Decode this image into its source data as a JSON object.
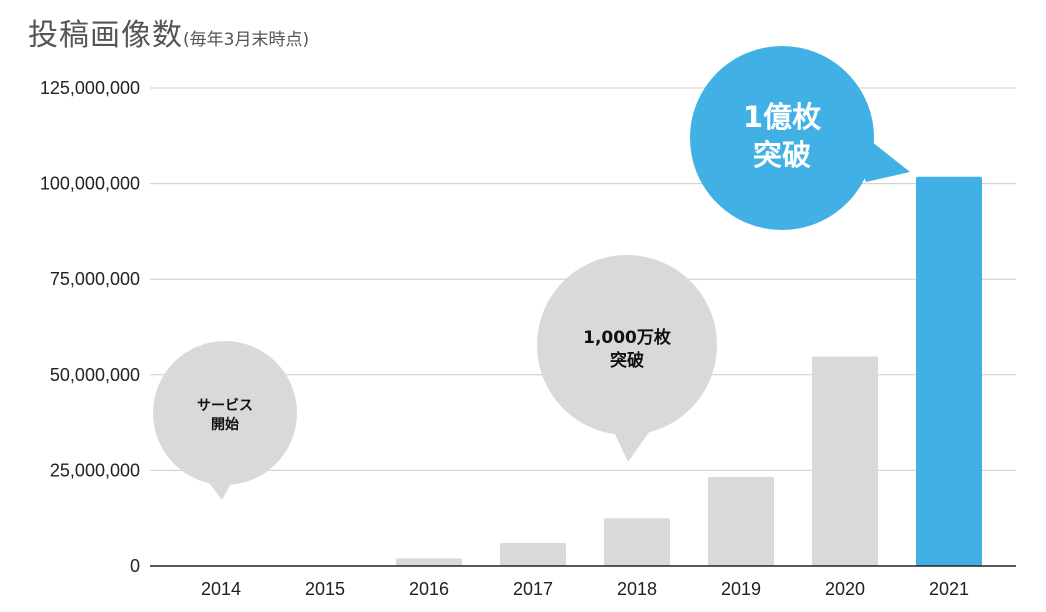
{
  "title": {
    "main": "投稿画像数",
    "sub": "(毎年3月末時点)"
  },
  "colors": {
    "bar_default": "#d9d9d9",
    "bar_highlight": "#41b0e4",
    "gridline": "#cccccc",
    "axis": "#222222",
    "bubble_gray": "#d9d9d9",
    "bubble_blue": "#41b0e4"
  },
  "chart_data": {
    "type": "bar",
    "categories": [
      "2014",
      "2015",
      "2016",
      "2017",
      "2018",
      "2019",
      "2020",
      "2021"
    ],
    "values": [
      0,
      0,
      2000000,
      6000000,
      12500000,
      23300000,
      54800000,
      101800000
    ],
    "highlight": [
      "2021"
    ],
    "ylim": [
      0,
      125000000
    ],
    "yticks": [
      0,
      25000000,
      50000000,
      75000000,
      100000000,
      125000000
    ],
    "ytick_labels": [
      "0",
      "25,000,000",
      "50,000,000",
      "75,000,000",
      "100,000,000",
      "125,000,000"
    ],
    "grid": true,
    "annotations": [
      {
        "lines": [
          "サービス",
          "開始"
        ],
        "category": "2014",
        "style": "gray"
      },
      {
        "lines": [
          "1,000万枚",
          "突破"
        ],
        "category": "2018",
        "style": "gray"
      },
      {
        "lines": [
          "1億枚",
          "突破"
        ],
        "category": "2021",
        "style": "blue"
      }
    ]
  }
}
